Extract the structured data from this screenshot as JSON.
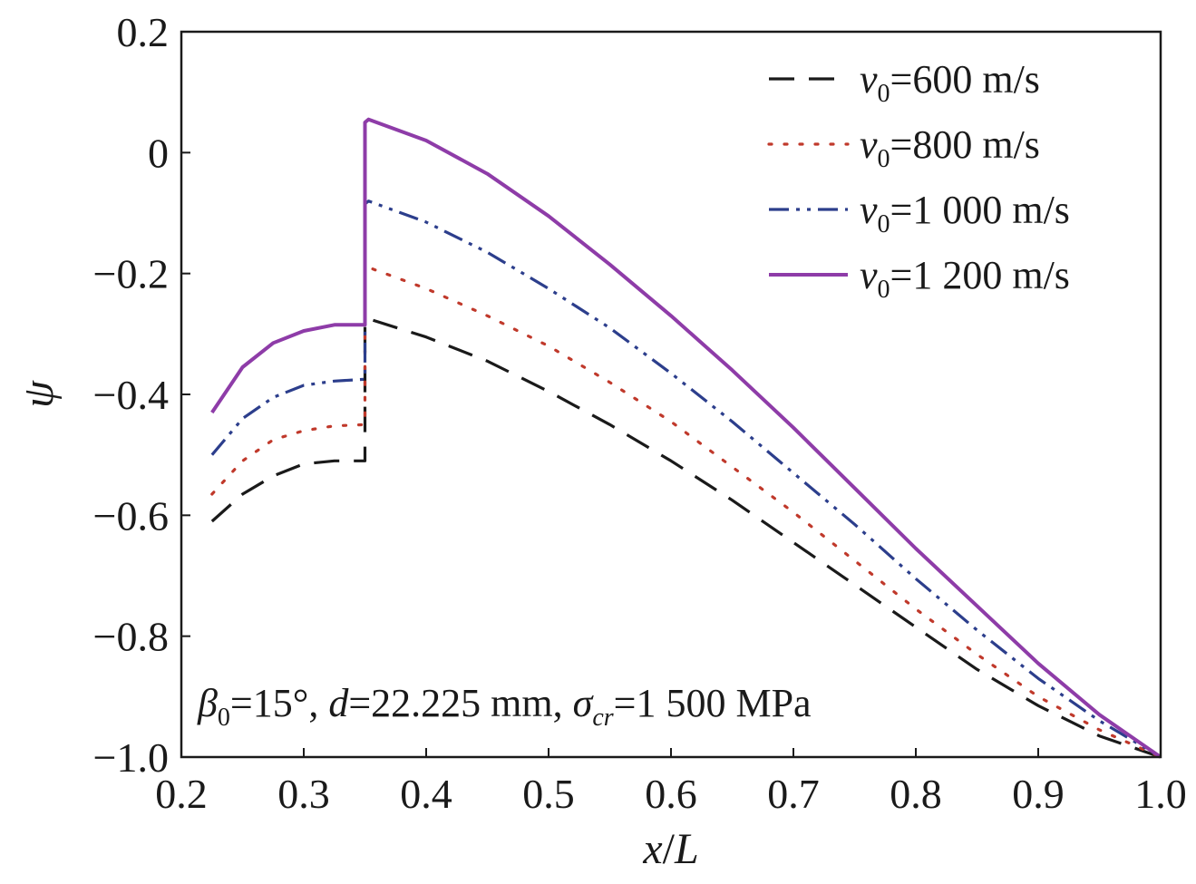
{
  "chart_data": {
    "type": "line",
    "title": "",
    "xlabel_var": "x",
    "xlabel_sep": "/",
    "xlabel_den": "L",
    "ylabel": "ψ",
    "xlim": [
      0.2,
      1.0
    ],
    "ylim": [
      -1.0,
      0.2
    ],
    "xticks": [
      0.2,
      0.3,
      0.4,
      0.5,
      0.6,
      0.7,
      0.8,
      0.9,
      1.0
    ],
    "xtick_labels": [
      "0.2",
      "0.3",
      "0.4",
      "0.5",
      "0.6",
      "0.7",
      "0.8",
      "0.9",
      "1.0"
    ],
    "yticks": [
      0.2,
      0.0,
      -0.2,
      -0.4,
      -0.6,
      -0.8,
      -1.0
    ],
    "ytick_labels": [
      "0.2",
      "0",
      "−0.2",
      "−0.4",
      "−0.6",
      "−0.8",
      "−1.0"
    ],
    "grid": false,
    "legend_position": "top-right",
    "series": [
      {
        "name_var": "v",
        "name_sub": "0",
        "name_rest": "=600 m/s",
        "color": "#1a1a1a",
        "dash": "28 16",
        "x": [
          0.225,
          0.25,
          0.275,
          0.3,
          0.325,
          0.35,
          0.35,
          0.353,
          0.4,
          0.45,
          0.5,
          0.55,
          0.6,
          0.65,
          0.7,
          0.75,
          0.8,
          0.85,
          0.9,
          0.95,
          1.0
        ],
        "y": [
          -0.61,
          -0.565,
          -0.535,
          -0.515,
          -0.51,
          -0.51,
          -0.28,
          -0.275,
          -0.305,
          -0.345,
          -0.395,
          -0.45,
          -0.51,
          -0.575,
          -0.645,
          -0.715,
          -0.785,
          -0.855,
          -0.915,
          -0.965,
          -1.0
        ]
      },
      {
        "name_var": "v",
        "name_sub": "0",
        "name_rest": "=800 m/s",
        "color": "#c0392b",
        "dash": "3 14",
        "x": [
          0.225,
          0.25,
          0.275,
          0.3,
          0.325,
          0.35,
          0.35,
          0.353,
          0.4,
          0.45,
          0.5,
          0.55,
          0.6,
          0.65,
          0.7,
          0.75,
          0.8,
          0.85,
          0.9,
          0.95,
          1.0
        ],
        "y": [
          -0.565,
          -0.51,
          -0.475,
          -0.46,
          -0.452,
          -0.45,
          -0.195,
          -0.19,
          -0.225,
          -0.27,
          -0.32,
          -0.38,
          -0.445,
          -0.52,
          -0.595,
          -0.675,
          -0.755,
          -0.83,
          -0.9,
          -0.955,
          -1.0
        ]
      },
      {
        "name_var": "v",
        "name_sub": "0",
        "name_rest": "=1 000 m/s",
        "color": "#2c3e8c",
        "dash": "22 8 4 8 4 8",
        "x": [
          0.225,
          0.25,
          0.275,
          0.3,
          0.325,
          0.35,
          0.35,
          0.353,
          0.4,
          0.45,
          0.5,
          0.55,
          0.6,
          0.65,
          0.7,
          0.75,
          0.8,
          0.85,
          0.9,
          0.95,
          1.0
        ],
        "y": [
          -0.5,
          -0.44,
          -0.405,
          -0.385,
          -0.378,
          -0.375,
          -0.085,
          -0.08,
          -0.115,
          -0.165,
          -0.225,
          -0.29,
          -0.365,
          -0.445,
          -0.53,
          -0.615,
          -0.705,
          -0.79,
          -0.87,
          -0.94,
          -1.0
        ]
      },
      {
        "name_var": "v",
        "name_sub": "0",
        "name_rest": "=1 200 m/s",
        "color": "#8e3ca8",
        "dash": "",
        "x": [
          0.225,
          0.25,
          0.275,
          0.3,
          0.325,
          0.35,
          0.35,
          0.353,
          0.4,
          0.45,
          0.5,
          0.55,
          0.6,
          0.65,
          0.7,
          0.75,
          0.8,
          0.85,
          0.9,
          0.95,
          1.0
        ],
        "y": [
          -0.43,
          -0.355,
          -0.315,
          -0.295,
          -0.285,
          -0.285,
          0.05,
          0.055,
          0.02,
          -0.035,
          -0.105,
          -0.185,
          -0.27,
          -0.36,
          -0.455,
          -0.555,
          -0.655,
          -0.75,
          -0.845,
          -0.93,
          -1.0
        ]
      }
    ],
    "annotation": {
      "beta_var": "β",
      "beta_sub": "0",
      "beta_rest": "=15°, ",
      "d_var": "d",
      "d_rest": "=22.225 mm, ",
      "sigma_var": "σ",
      "sigma_sub": "cr",
      "sigma_rest": "=1 500 MPa"
    }
  }
}
